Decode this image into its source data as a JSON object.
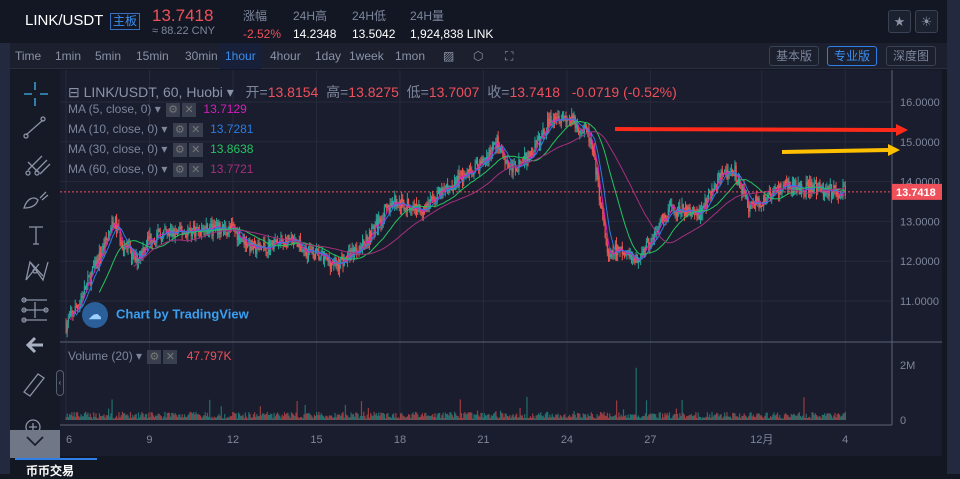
{
  "header": {
    "symbol": "LINK/USDT",
    "board_badge": "主板",
    "last_price": "13.7418",
    "cny_price": "≈ 88.22 CNY",
    "stats": [
      {
        "label": "涨幅",
        "value": "-2.52%",
        "color": "#f0505a"
      },
      {
        "label": "24H高",
        "value": "14.2348"
      },
      {
        "label": "24H低",
        "value": "13.5042"
      },
      {
        "label": "24H量",
        "value": "1,924,838 LINK"
      }
    ],
    "icons": [
      "star-icon",
      "theme-sun-icon"
    ]
  },
  "toolbar": {
    "timeframes": [
      "Time",
      "1min",
      "5min",
      "15min",
      "30min",
      "1hour",
      "4hour",
      "1day",
      "1week",
      "1mon"
    ],
    "active": "1hour",
    "view_buttons": [
      "基本版",
      "专业版",
      "深度图"
    ],
    "active_view": "专业版"
  },
  "legend": {
    "title": "LINK/USDT, 60, Huobi",
    "open_label": "开=",
    "open": "13.8154",
    "high_label": "高=",
    "high": "13.8275",
    "low_label": "低=",
    "low": "13.7007",
    "close_label": "收=",
    "close": "13.7418",
    "change": "-0.0719 (-0.52%)",
    "mas": [
      {
        "label": "MA (5, close, 0)",
        "value": "13.7129",
        "color": "#d61fbd"
      },
      {
        "label": "MA (10, close, 0)",
        "value": "13.7281",
        "color": "#2a7de1"
      },
      {
        "label": "MA (30, close, 0)",
        "value": "13.8638",
        "color": "#22c55e"
      },
      {
        "label": "MA (60, close, 0)",
        "value": "13.7721",
        "color": "#a3307e"
      }
    ],
    "volume_label": "Volume (20)",
    "volume_value": "47.797K"
  },
  "watermark": "Chart by TradingView",
  "bottom_tab": "币币交易",
  "chart_data": {
    "type": "candlestick",
    "y_ticks": [
      "16.0000",
      "15.0000",
      "14.0000",
      "13.0000",
      "12.0000",
      "11.0000"
    ],
    "ylim": [
      10.3,
      16.4
    ],
    "x_ticks": [
      "6",
      "9",
      "12",
      "15",
      "18",
      "21",
      "24",
      "27",
      "12月",
      "4"
    ],
    "volume_ticks": [
      "2M",
      "0"
    ],
    "last_price_label": "13.7418",
    "up_color": "#26a69a",
    "down_color": "#ef5350",
    "close_path": [
      [
        "11-06",
        10.4
      ],
      [
        "11-06 12h",
        11.0
      ],
      [
        "11-07 18h",
        13.0
      ],
      [
        "11-08",
        12.5
      ],
      [
        "11-08 12h",
        12.0
      ],
      [
        "11-09",
        12.6
      ],
      [
        "11-10 18h",
        12.8
      ],
      [
        "11-12",
        12.8
      ],
      [
        "11-12 18h",
        12.3
      ],
      [
        "11-14",
        12.5
      ],
      [
        "11-15 18h",
        11.9
      ],
      [
        "11-16 18h",
        12.5
      ],
      [
        "11-17 18h",
        13.5
      ],
      [
        "11-18 18h",
        13.3
      ],
      [
        "11-20",
        14.0
      ],
      [
        "11-21",
        14.5
      ],
      [
        "11-21 12h",
        15.0
      ],
      [
        "11-22",
        14.3
      ],
      [
        "11-22 18h",
        14.7
      ],
      [
        "11-23 12h",
        15.7
      ],
      [
        "11-24",
        15.6
      ],
      [
        "11-24 18h",
        15.2
      ],
      [
        "11-25",
        14.5
      ],
      [
        "11-25 12h",
        12.0
      ],
      [
        "11-25 18h",
        12.3
      ],
      [
        "11-26 12h",
        12.0
      ],
      [
        "11-27",
        12.5
      ],
      [
        "11-27 18h",
        13.3
      ],
      [
        "11-28 18h",
        13.2
      ],
      [
        "11-29 12h",
        14.1
      ],
      [
        "11-30",
        14.3
      ],
      [
        "11-30 12h",
        13.4
      ],
      [
        "12-01",
        13.5
      ],
      [
        "12-01 18h",
        13.9
      ],
      [
        "12-04",
        13.74
      ]
    ],
    "annotations": [
      {
        "type": "arrow",
        "color": "#ff2a1a",
        "price": 15.3
      },
      {
        "type": "arrow",
        "color": "#ffc000",
        "price": 14.7
      }
    ]
  }
}
